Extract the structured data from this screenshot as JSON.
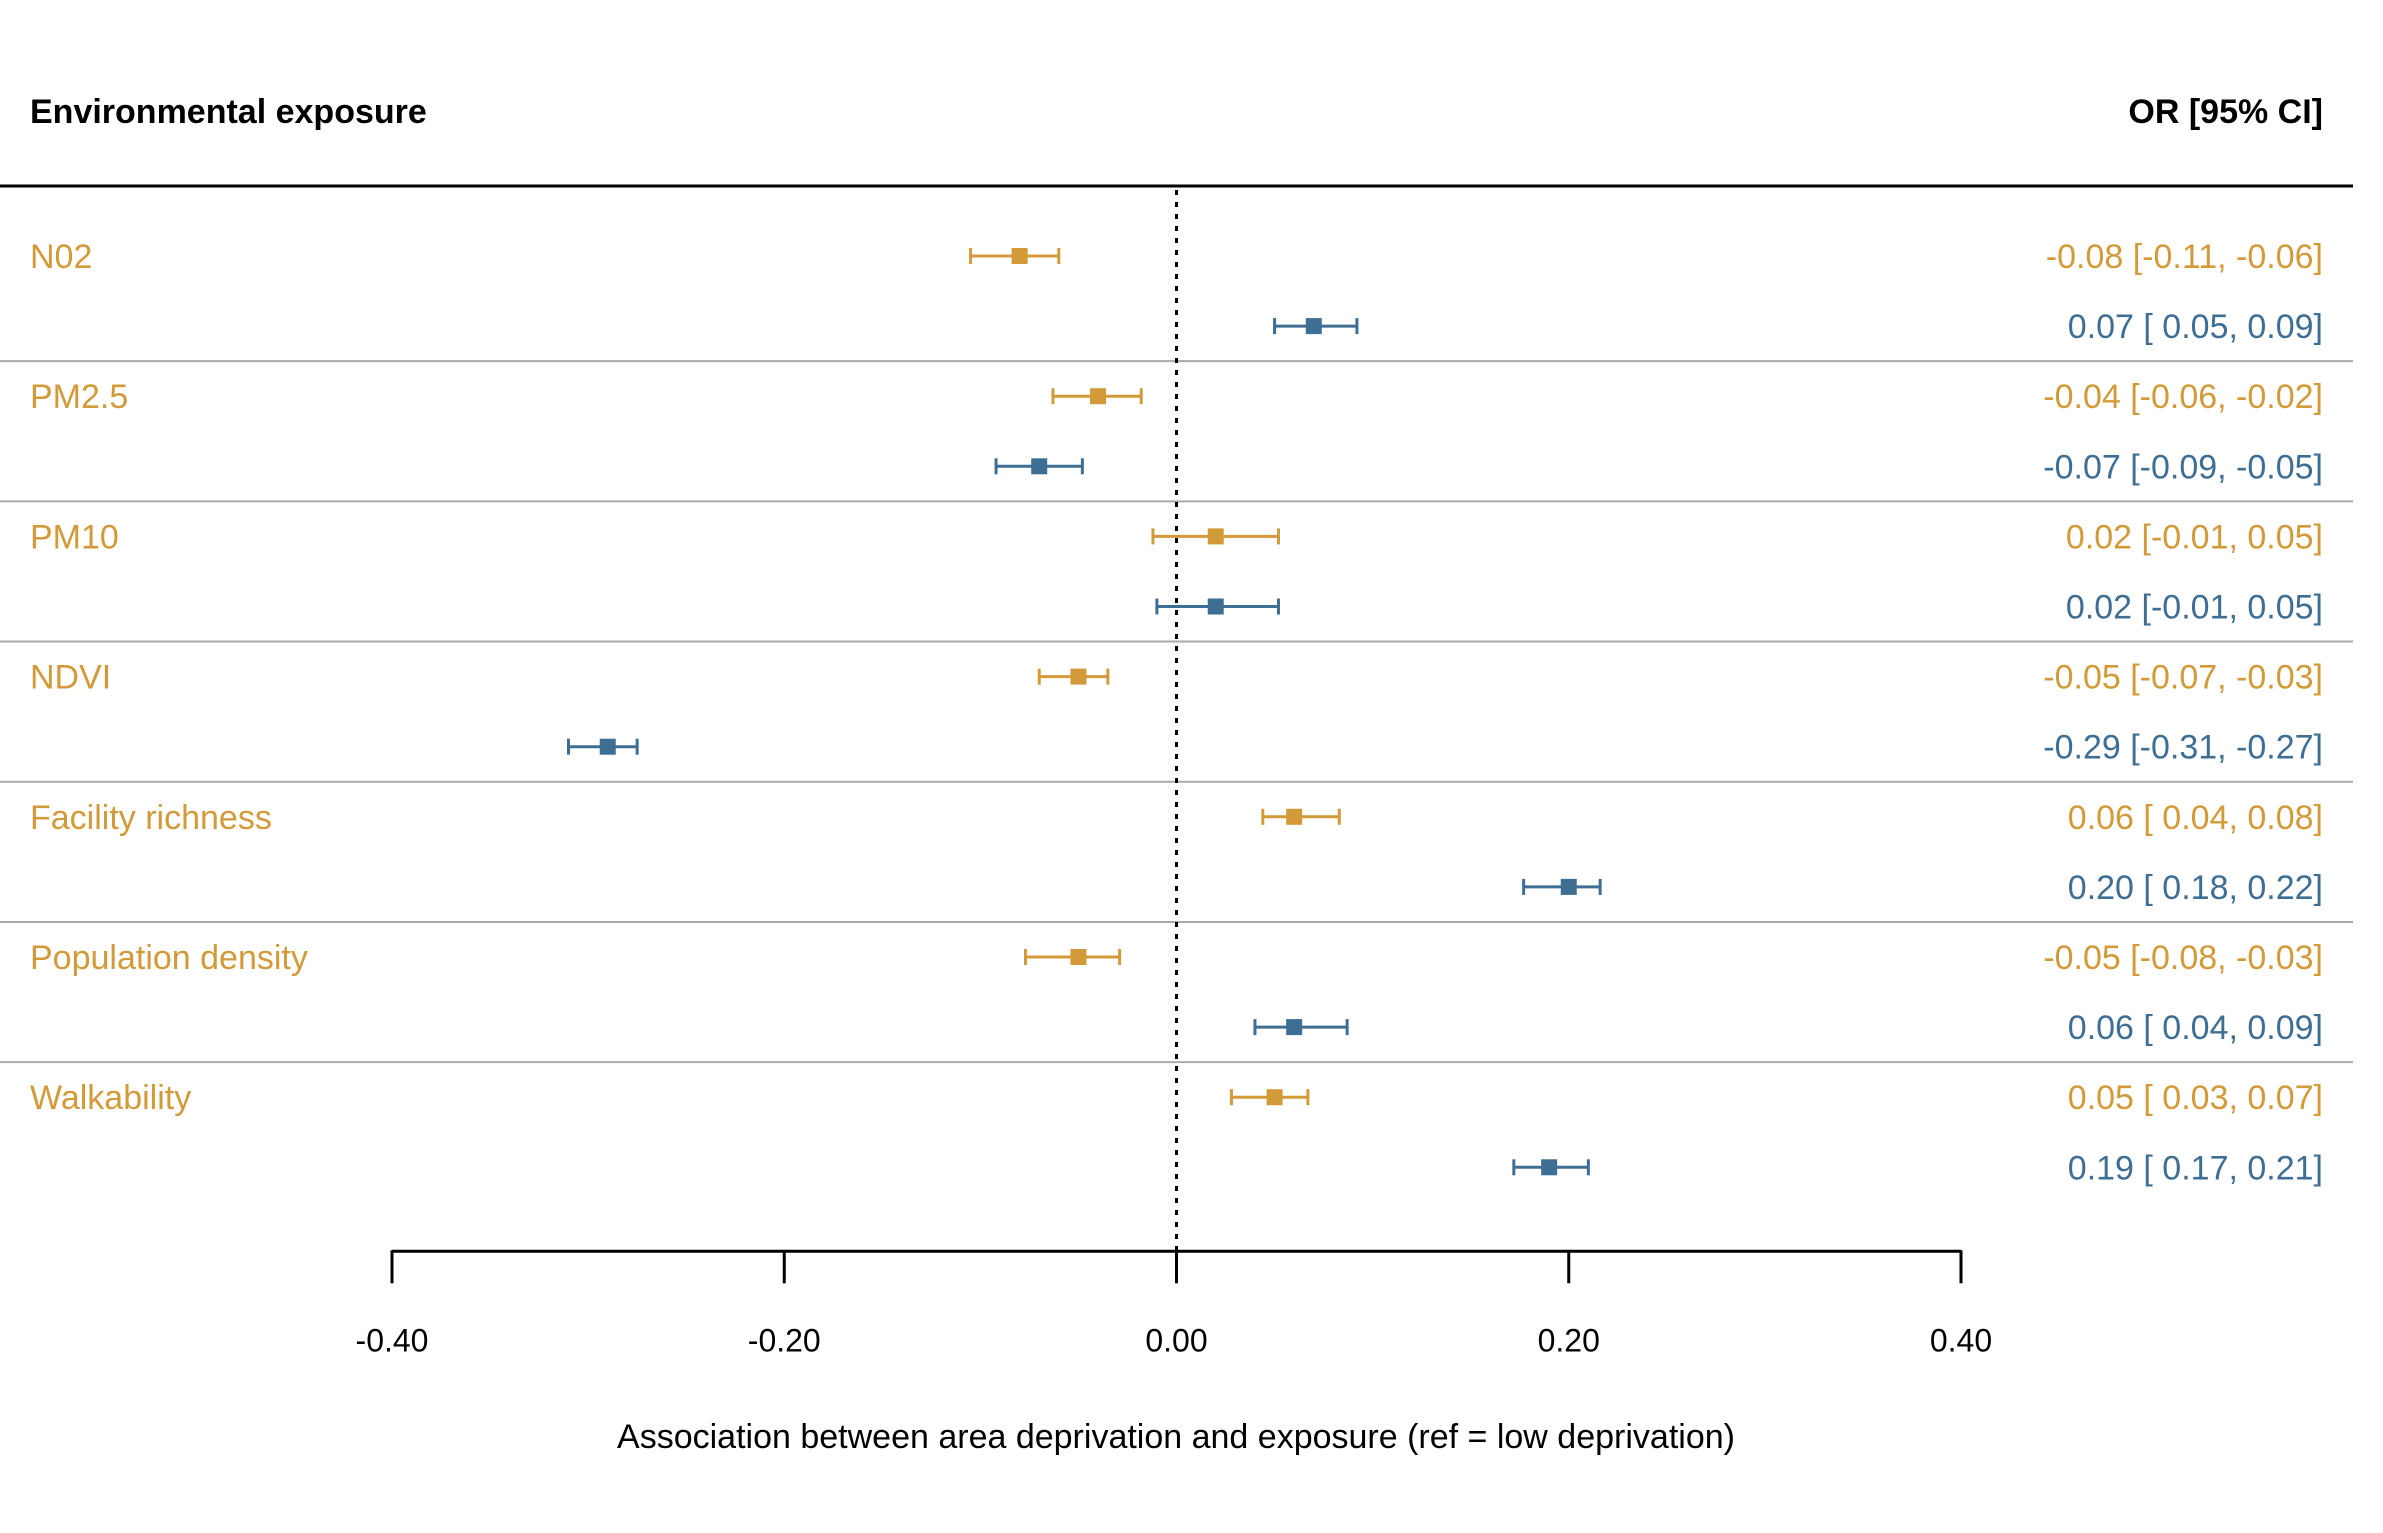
{
  "chart_data": {
    "type": "forest",
    "header_left": "Environmental exposure",
    "header_right": "OR [95% CI]",
    "xlabel": "Association between area deprivation and exposure (ref = low deprivation)",
    "xlim": [
      -0.4,
      0.4
    ],
    "x_ticks": [
      -0.4,
      -0.2,
      0.0,
      0.2,
      0.4
    ],
    "x_tick_labels": [
      "-0.40",
      "-0.20",
      "0.00",
      "0.20",
      "0.40"
    ],
    "reference_line": 0.0,
    "series_colors": {
      "orange": "#D29A38",
      "blue": "#3F6E94"
    },
    "groups": [
      {
        "name": "N02",
        "rows": [
          {
            "series": "orange",
            "est": -0.08,
            "lo": -0.105,
            "hi": -0.06,
            "label": "-0.08 [-0.11, -0.06]"
          },
          {
            "series": "blue",
            "est": 0.07,
            "lo": 0.05,
            "hi": 0.092,
            "label": "0.07 [ 0.05,  0.09]"
          }
        ]
      },
      {
        "name": "PM2.5",
        "rows": [
          {
            "series": "orange",
            "est": -0.04,
            "lo": -0.063,
            "hi": -0.018,
            "label": "-0.04 [-0.06, -0.02]"
          },
          {
            "series": "blue",
            "est": -0.07,
            "lo": -0.092,
            "hi": -0.048,
            "label": "-0.07 [-0.09, -0.05]"
          }
        ]
      },
      {
        "name": "PM10",
        "rows": [
          {
            "series": "orange",
            "est": 0.02,
            "lo": -0.012,
            "hi": 0.052,
            "label": "0.02 [-0.01,  0.05]"
          },
          {
            "series": "blue",
            "est": 0.02,
            "lo": -0.01,
            "hi": 0.052,
            "label": "0.02 [-0.01,  0.05]"
          }
        ]
      },
      {
        "name": "NDVI",
        "rows": [
          {
            "series": "orange",
            "est": -0.05,
            "lo": -0.07,
            "hi": -0.035,
            "label": "-0.05 [-0.07, -0.03]"
          },
          {
            "series": "blue",
            "est": -0.29,
            "lo": -0.31,
            "hi": -0.275,
            "label": "-0.29 [-0.31, -0.27]"
          }
        ]
      },
      {
        "name": "Facility richness",
        "rows": [
          {
            "series": "orange",
            "est": 0.06,
            "lo": 0.044,
            "hi": 0.083,
            "label": "0.06 [ 0.04,  0.08]"
          },
          {
            "series": "blue",
            "est": 0.2,
            "lo": 0.177,
            "hi": 0.216,
            "label": "0.20 [ 0.18,  0.22]"
          }
        ]
      },
      {
        "name": "Population density",
        "rows": [
          {
            "series": "orange",
            "est": -0.05,
            "lo": -0.077,
            "hi": -0.029,
            "label": "-0.05 [-0.08, -0.03]"
          },
          {
            "series": "blue",
            "est": 0.06,
            "lo": 0.04,
            "hi": 0.087,
            "label": "0.06 [ 0.04,  0.09]"
          }
        ]
      },
      {
        "name": "Walkability",
        "rows": [
          {
            "series": "orange",
            "est": 0.05,
            "lo": 0.028,
            "hi": 0.067,
            "label": "0.05 [ 0.03,  0.07]"
          },
          {
            "series": "blue",
            "est": 0.19,
            "lo": 0.172,
            "hi": 0.21,
            "label": "0.19 [ 0.17,  0.21]"
          }
        ]
      }
    ]
  }
}
